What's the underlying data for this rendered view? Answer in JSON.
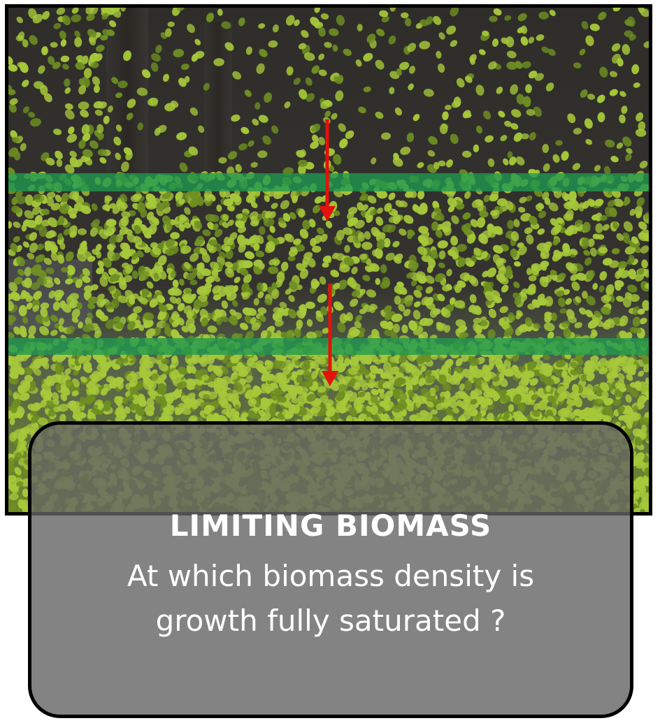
{
  "image": {
    "subject": "duckweed-tank-photo",
    "palette": {
      "background": "#2b2a27",
      "frond": "#a6c83a",
      "frond_dark": "#6e8f22",
      "band": "#1f9a4f",
      "arrow": "#e3120b"
    }
  },
  "caption": {
    "title": "LIMITING BIOMASS",
    "question": "At which biomass density is growth fully saturated ?"
  }
}
